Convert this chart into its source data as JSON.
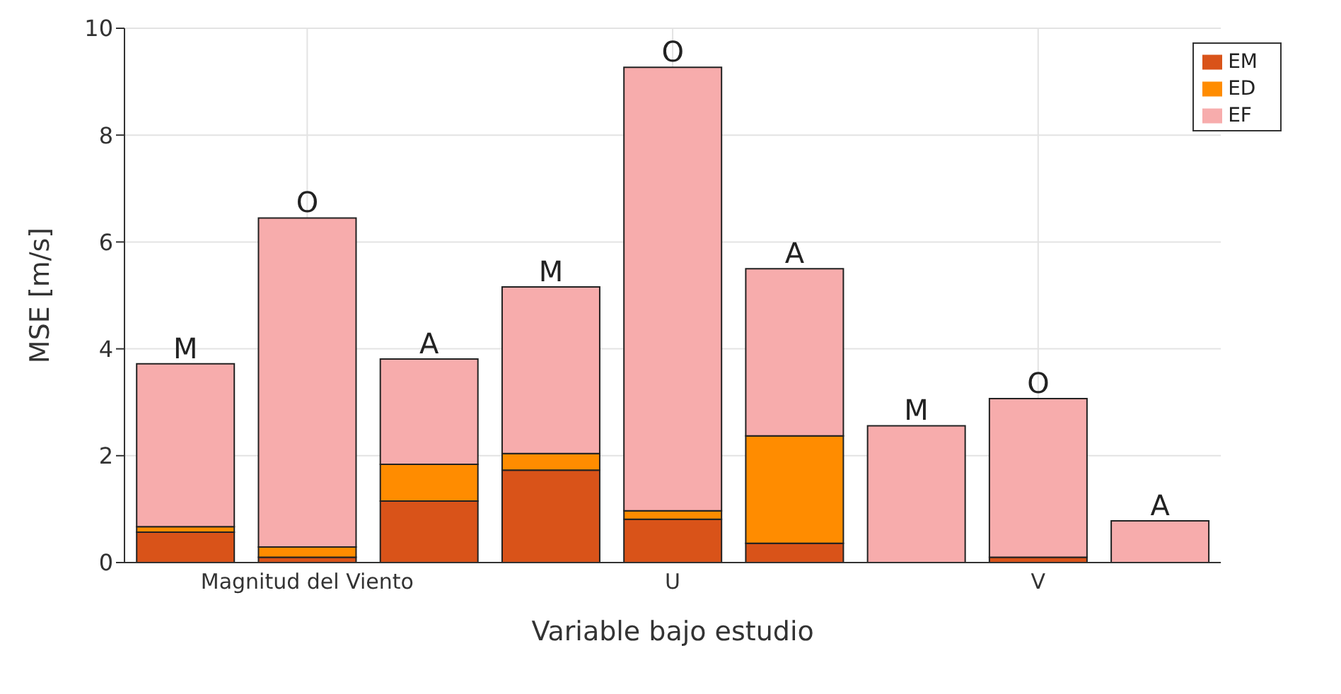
{
  "chart_data": {
    "type": "bar",
    "stacked": true,
    "xlabel": "Variable bajo estudio",
    "ylabel": "MSE [m/s]",
    "categories": [
      null,
      "Magnitud del Viento",
      null,
      null,
      "U",
      null,
      null,
      "V",
      null
    ],
    "series": [
      {
        "name": "EM",
        "color": "#d95319",
        "values": [
          0.57,
          0.1,
          1.15,
          1.73,
          0.81,
          0.36,
          null,
          0.1,
          0
        ]
      },
      {
        "name": "ED",
        "color": "#ff8c00",
        "values": [
          0.1,
          0.19,
          0.69,
          0.31,
          0.16,
          2.01,
          0,
          null,
          0
        ]
      },
      {
        "name": "EF",
        "color": "#f7acac",
        "values": [
          3.05,
          6.16,
          1.97,
          3.12,
          8.3,
          3.13,
          2.56,
          2.97,
          0.78
        ],
        "value_labels": [
          "M",
          "O",
          "A",
          "M",
          "O",
          "A",
          "M",
          "O",
          "A"
        ]
      }
    ],
    "ylim": [
      0,
      10
    ],
    "yticks": [
      0,
      2,
      4,
      6,
      8,
      10
    ],
    "grid": true,
    "legend": "top right"
  }
}
